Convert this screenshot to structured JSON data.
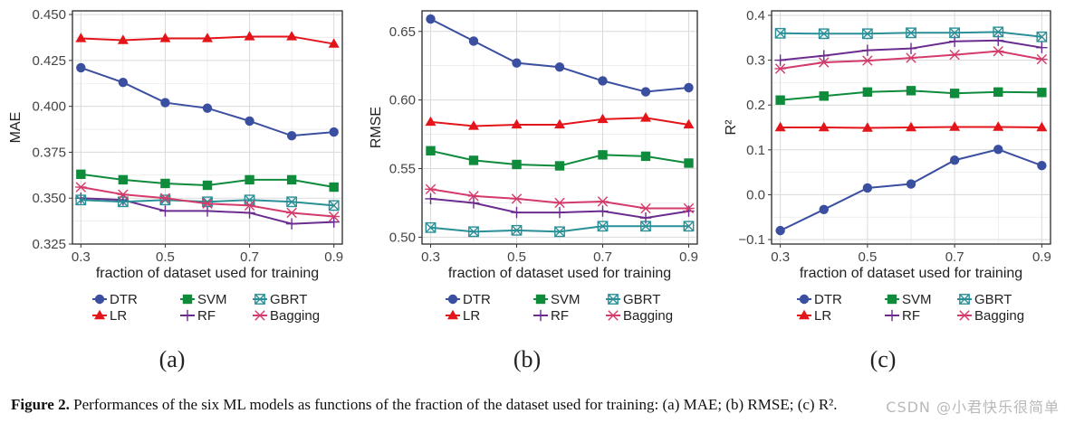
{
  "figure": {
    "caption_label": "Figure 2.",
    "caption_text": "Performances of the six ML models as functions of the fraction of the dataset used for training: (a) MAE; (b) RMSE; (c) R².",
    "watermark": "CSDN @小君快乐很简单"
  },
  "colors": {
    "DTR": "#3b4fa0",
    "LR": "#e3151b",
    "SVM": "#0f8b3c",
    "RF": "#6b2c8f",
    "GBRT": "#2a8f96",
    "Bagging": "#d43a6a",
    "grid": "#e3e3e3",
    "axis_text": "#444444"
  },
  "chart_data": [
    {
      "type": "line",
      "panel_label": "(a)",
      "xlabel": "fraction of dataset used for training",
      "ylabel": "MAE",
      "x": [
        0.3,
        0.4,
        0.5,
        0.6,
        0.7,
        0.8,
        0.9
      ],
      "xlim": [
        0.28,
        0.92
      ],
      "xticks": [
        "0.3",
        "0.5",
        "0.7",
        "0.9"
      ],
      "xtick_values": [
        0.3,
        0.5,
        0.7,
        0.9
      ],
      "ylim": [
        0.325,
        0.452
      ],
      "yticks": [
        "0.325",
        "0.350",
        "0.375",
        "0.400",
        "0.425",
        "0.450"
      ],
      "ytick_values": [
        0.325,
        0.35,
        0.375,
        0.4,
        0.425,
        0.45
      ],
      "series": [
        {
          "name": "DTR",
          "marker": "circle",
          "values": [
            0.421,
            0.413,
            0.402,
            0.399,
            0.392,
            0.384,
            0.386
          ]
        },
        {
          "name": "LR",
          "marker": "triangle",
          "values": [
            0.437,
            0.436,
            0.437,
            0.437,
            0.438,
            0.438,
            0.434
          ]
        },
        {
          "name": "SVM",
          "marker": "square",
          "values": [
            0.363,
            0.36,
            0.358,
            0.357,
            0.36,
            0.36,
            0.356
          ]
        },
        {
          "name": "RF",
          "marker": "plus",
          "values": [
            0.35,
            0.349,
            0.343,
            0.343,
            0.342,
            0.336,
            0.337
          ]
        },
        {
          "name": "GBRT",
          "marker": "boxx",
          "values": [
            0.349,
            0.348,
            0.349,
            0.348,
            0.349,
            0.348,
            0.346
          ]
        },
        {
          "name": "Bagging",
          "marker": "asterisk",
          "values": [
            0.356,
            0.352,
            0.35,
            0.347,
            0.346,
            0.342,
            0.34
          ]
        }
      ]
    },
    {
      "type": "line",
      "panel_label": "(b)",
      "xlabel": "fraction of dataset used for training",
      "ylabel": "RMSE",
      "x": [
        0.3,
        0.4,
        0.5,
        0.6,
        0.7,
        0.8,
        0.9
      ],
      "xlim": [
        0.28,
        0.92
      ],
      "xticks": [
        "0.3",
        "0.5",
        "0.7",
        "0.9"
      ],
      "xtick_values": [
        0.3,
        0.5,
        0.7,
        0.9
      ],
      "ylim": [
        0.495,
        0.665
      ],
      "yticks": [
        "0.50",
        "0.55",
        "0.60",
        "0.65"
      ],
      "ytick_values": [
        0.5,
        0.55,
        0.6,
        0.65
      ],
      "series": [
        {
          "name": "DTR",
          "marker": "circle",
          "values": [
            0.659,
            0.643,
            0.627,
            0.624,
            0.614,
            0.606,
            0.609
          ]
        },
        {
          "name": "LR",
          "marker": "triangle",
          "values": [
            0.584,
            0.581,
            0.582,
            0.582,
            0.586,
            0.587,
            0.582
          ]
        },
        {
          "name": "SVM",
          "marker": "square",
          "values": [
            0.563,
            0.556,
            0.553,
            0.552,
            0.56,
            0.559,
            0.554
          ]
        },
        {
          "name": "RF",
          "marker": "plus",
          "values": [
            0.528,
            0.525,
            0.518,
            0.518,
            0.519,
            0.514,
            0.519
          ]
        },
        {
          "name": "GBRT",
          "marker": "boxx",
          "values": [
            0.507,
            0.504,
            0.505,
            0.504,
            0.508,
            0.508,
            0.508
          ]
        },
        {
          "name": "Bagging",
          "marker": "asterisk",
          "values": [
            0.535,
            0.53,
            0.528,
            0.525,
            0.526,
            0.521,
            0.521
          ]
        }
      ]
    },
    {
      "type": "line",
      "panel_label": "(c)",
      "xlabel": "fraction of dataset used for training",
      "ylabel": "R²",
      "x": [
        0.3,
        0.4,
        0.5,
        0.6,
        0.7,
        0.8,
        0.9
      ],
      "xlim": [
        0.28,
        0.92
      ],
      "xticks": [
        "0.3",
        "0.5",
        "0.7",
        "0.9"
      ],
      "xtick_values": [
        0.3,
        0.5,
        0.7,
        0.9
      ],
      "ylim": [
        -0.11,
        0.41
      ],
      "yticks": [
        "−0.1",
        "0.0",
        "0.1",
        "0.2",
        "0.3",
        "0.4"
      ],
      "ytick_values": [
        -0.1,
        0.0,
        0.1,
        0.2,
        0.3,
        0.4
      ],
      "series": [
        {
          "name": "DTR",
          "marker": "circle",
          "values": [
            -0.08,
            -0.033,
            0.015,
            0.024,
            0.077,
            0.101,
            0.065
          ]
        },
        {
          "name": "LR",
          "marker": "triangle",
          "values": [
            0.15,
            0.15,
            0.149,
            0.15,
            0.151,
            0.151,
            0.15
          ]
        },
        {
          "name": "SVM",
          "marker": "square",
          "values": [
            0.211,
            0.22,
            0.229,
            0.232,
            0.226,
            0.229,
            0.228
          ]
        },
        {
          "name": "RF",
          "marker": "plus",
          "values": [
            0.3,
            0.31,
            0.322,
            0.326,
            0.342,
            0.344,
            0.328
          ]
        },
        {
          "name": "GBRT",
          "marker": "boxx",
          "values": [
            0.36,
            0.359,
            0.359,
            0.361,
            0.361,
            0.363,
            0.352
          ]
        },
        {
          "name": "Bagging",
          "marker": "asterisk",
          "values": [
            0.281,
            0.295,
            0.299,
            0.305,
            0.312,
            0.32,
            0.302
          ]
        }
      ]
    }
  ],
  "legend": {
    "row1": [
      "DTR",
      "SVM",
      "GBRT"
    ],
    "row2": [
      "LR",
      "RF",
      "Bagging"
    ]
  }
}
